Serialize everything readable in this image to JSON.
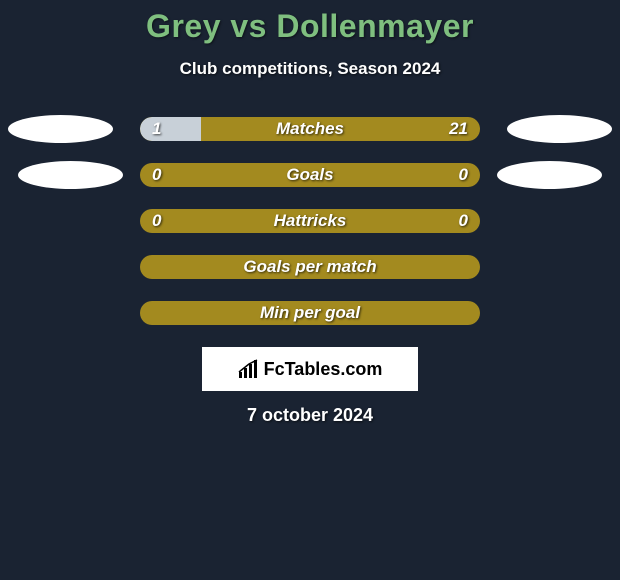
{
  "title": "Grey vs Dollenmayer",
  "subtitle": "Club competitions, Season 2024",
  "date": "7 october 2024",
  "logo": {
    "text": "FcTables.com"
  },
  "colors": {
    "background": "#1a2332",
    "title": "#7fbf7f",
    "bar_fill": "#a38a1f",
    "bar_neutral": "#c8d0d8",
    "text": "#ffffff",
    "oval": "#ffffff"
  },
  "rows": [
    {
      "label": "Matches",
      "left_val": "1",
      "right_val": "21",
      "left_pct": 18,
      "right_pct": 0,
      "show_ovals": true,
      "oval_variant": 1
    },
    {
      "label": "Goals",
      "left_val": "0",
      "right_val": "0",
      "left_pct": 0,
      "right_pct": 0,
      "show_ovals": true,
      "oval_variant": 2
    },
    {
      "label": "Hattricks",
      "left_val": "0",
      "right_val": "0",
      "left_pct": 0,
      "right_pct": 0,
      "show_ovals": false
    },
    {
      "label": "Goals per match",
      "left_val": "",
      "right_val": "",
      "left_pct": 0,
      "right_pct": 0,
      "show_ovals": false
    },
    {
      "label": "Min per goal",
      "left_val": "",
      "right_val": "",
      "left_pct": 0,
      "right_pct": 0,
      "show_ovals": false
    }
  ]
}
